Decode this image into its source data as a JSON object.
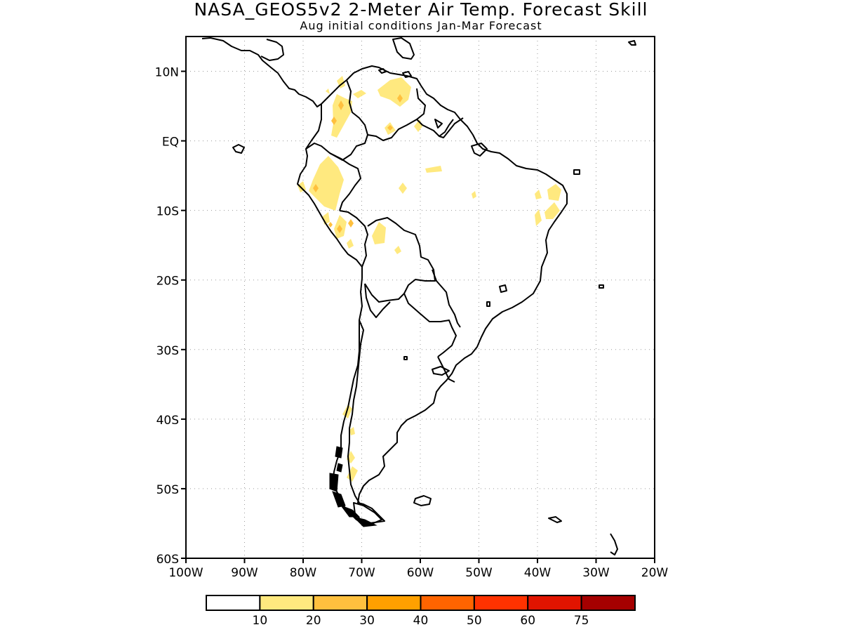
{
  "title": "NASA_GEOS5v2 2-Meter Air Temp. Forecast Skill",
  "subtitle": "Aug initial conditions  Jan-Mar Forecast",
  "map": {
    "lon_range": [
      -100,
      -20
    ],
    "lat_range": [
      -60,
      15
    ],
    "lat_ticks": [
      {
        "value": 10,
        "label": "10N"
      },
      {
        "value": 0,
        "label": "EQ"
      },
      {
        "value": -10,
        "label": "10S"
      },
      {
        "value": -20,
        "label": "20S"
      },
      {
        "value": -30,
        "label": "30S"
      },
      {
        "value": -40,
        "label": "40S"
      },
      {
        "value": -50,
        "label": "50S"
      },
      {
        "value": -60,
        "label": "60S"
      }
    ],
    "lon_ticks": [
      {
        "value": -100,
        "label": "100W"
      },
      {
        "value": -90,
        "label": "90W"
      },
      {
        "value": -80,
        "label": "80W"
      },
      {
        "value": -70,
        "label": "70W"
      },
      {
        "value": -60,
        "label": "60W"
      },
      {
        "value": -50,
        "label": "50W"
      },
      {
        "value": -40,
        "label": "40W"
      },
      {
        "value": -30,
        "label": "30W"
      },
      {
        "value": -20,
        "label": "20W"
      }
    ],
    "grid": true
  },
  "colorbar": {
    "colors": [
      "#ffffff",
      "#ffe97f",
      "#ffc03e",
      "#ffa000",
      "#ff6400",
      "#ff3200",
      "#e11400",
      "#a50000"
    ],
    "labels": [
      "10",
      "20",
      "30",
      "40",
      "50",
      "60",
      "75"
    ]
  }
}
